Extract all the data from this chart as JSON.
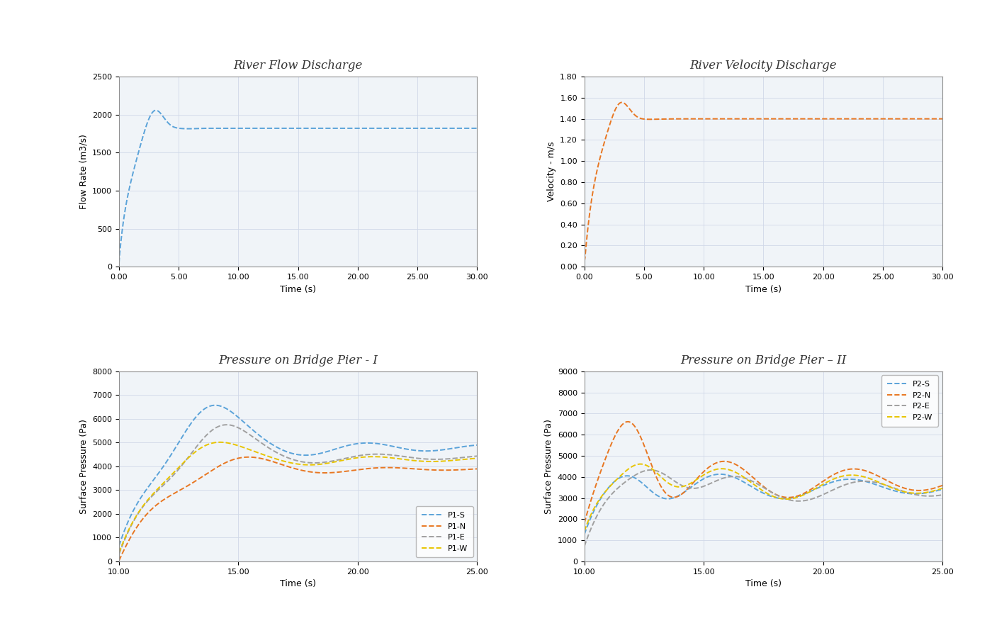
{
  "fig_width": 14.0,
  "fig_height": 9.0,
  "fig_bg": "#ffffff",
  "plot1": {
    "xlabel": "Time (s)",
    "ylabel": "Flow Rate (m3/s)",
    "xlim": [
      0,
      30
    ],
    "ylim": [
      0,
      2500
    ],
    "xticks": [
      0.0,
      5.0,
      10.0,
      15.0,
      20.0,
      25.0,
      30.0
    ],
    "yticks": [
      0,
      500,
      1000,
      1500,
      2000,
      2500
    ],
    "color": "#5ba3d9",
    "linestyle": "--"
  },
  "plot2": {
    "xlabel": "Time (s)",
    "ylabel": "Velocity - m/s",
    "xlim": [
      0,
      30
    ],
    "ylim": [
      0.0,
      1.8
    ],
    "xticks": [
      0.0,
      5.0,
      10.0,
      15.0,
      20.0,
      25.0,
      30.0
    ],
    "yticks": [
      0.0,
      0.2,
      0.4,
      0.6,
      0.8,
      1.0,
      1.2,
      1.4,
      1.6,
      1.8
    ],
    "color": "#e87722",
    "linestyle": "--"
  },
  "plot3": {
    "xlabel": "Time (s)",
    "ylabel": "Surface Pressure (Pa)",
    "xlim": [
      10,
      25
    ],
    "ylim": [
      0,
      8000
    ],
    "xticks": [
      10.0,
      15.0,
      20.0,
      25.0
    ],
    "yticks": [
      0,
      1000,
      2000,
      3000,
      4000,
      5000,
      6000,
      7000,
      8000
    ],
    "series": [
      {
        "label": "P1-S",
        "color": "#5ba3d9",
        "linestyle": "--"
      },
      {
        "label": "P1-N",
        "color": "#e87722",
        "linestyle": "--"
      },
      {
        "label": "P1-E",
        "color": "#a0a0a0",
        "linestyle": "--"
      },
      {
        "label": "P1-W",
        "color": "#e8c400",
        "linestyle": "--"
      }
    ]
  },
  "plot4": {
    "xlabel": "Time (s)",
    "ylabel": "Surface Pressure (Pa)",
    "xlim": [
      10,
      25
    ],
    "ylim": [
      0,
      9000
    ],
    "xticks": [
      10.0,
      15.0,
      20.0,
      25.0
    ],
    "yticks": [
      0,
      1000,
      2000,
      3000,
      4000,
      5000,
      6000,
      7000,
      8000,
      9000
    ],
    "series": [
      {
        "label": "P2-S",
        "color": "#5ba3d9",
        "linestyle": "--"
      },
      {
        "label": "P2-N",
        "color": "#e87722",
        "linestyle": "--"
      },
      {
        "label": "P2-E",
        "color": "#a0a0a0",
        "linestyle": "--"
      },
      {
        "label": "P2-W",
        "color": "#e8c400",
        "linestyle": "--"
      }
    ]
  },
  "title1": "River Flow Discharge",
  "title2": "River Velocity Discharge",
  "title3": "Pressure on Bridge Pier - I",
  "title4": "Pressure on Bridge Pier – II",
  "grid_color": "#d0d8e8",
  "ax_bg": "#f0f4f8",
  "spine_color": "#909090",
  "tick_fontsize": 8,
  "label_fontsize": 9,
  "title_fontsize": 12
}
